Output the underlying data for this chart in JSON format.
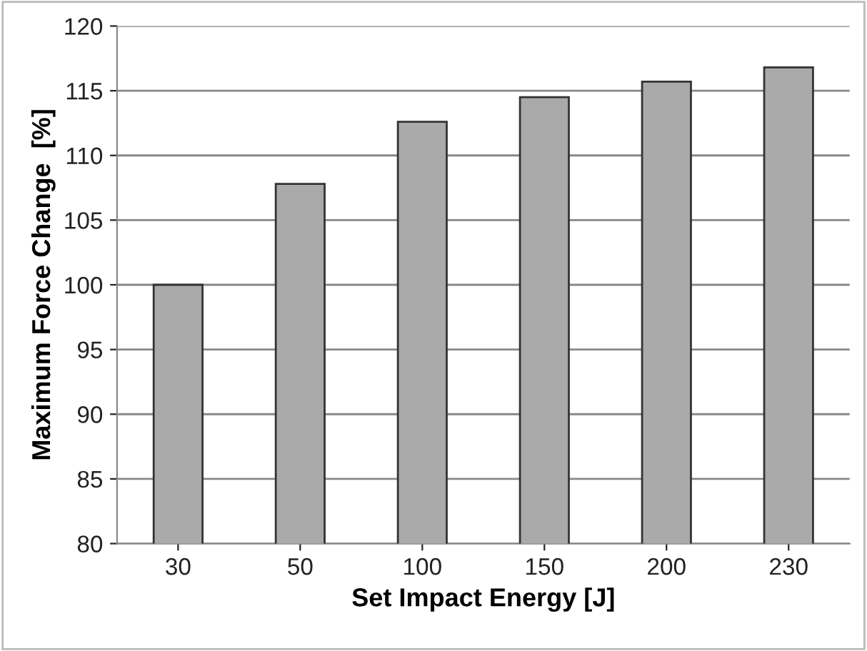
{
  "chart_data": {
    "type": "bar",
    "xlabel": "Set Impact Energy [J]",
    "ylabel": "Maximum Force Change  [%]",
    "categories": [
      "30",
      "50",
      "100",
      "150",
      "200",
      "230"
    ],
    "values": [
      100.0,
      107.8,
      112.6,
      114.5,
      115.7,
      116.8
    ],
    "color": "#aaaaaa",
    "ylim": [
      80,
      120
    ],
    "yticks": [
      80,
      85,
      90,
      95,
      100,
      105,
      110,
      115,
      120
    ],
    "grid": "y"
  }
}
